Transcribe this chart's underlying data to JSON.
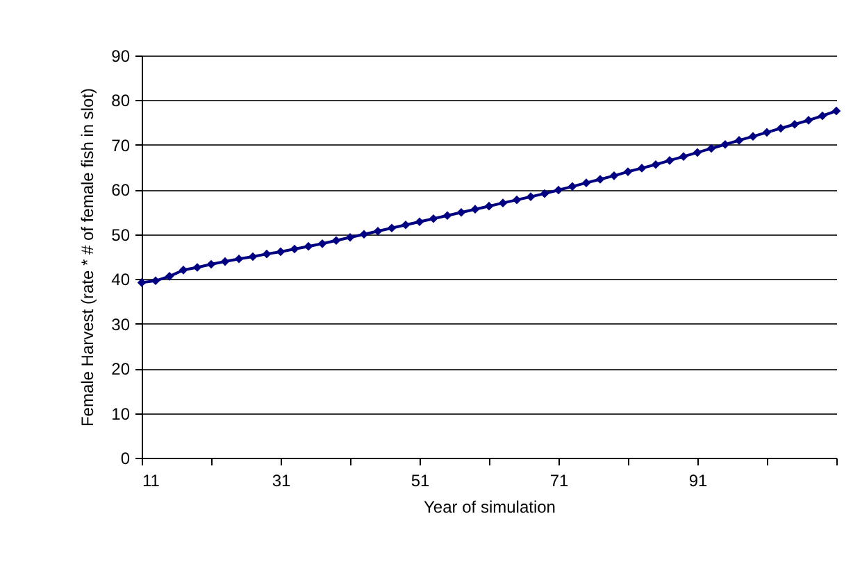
{
  "chart_data": {
    "type": "line",
    "xlabel": "Year of simulation",
    "ylabel": "Female Harvest (rate * # of female fish in slot)",
    "x": [
      11,
      13,
      15,
      17,
      19,
      21,
      23,
      25,
      27,
      29,
      31,
      33,
      35,
      37,
      39,
      41,
      43,
      45,
      47,
      49,
      51,
      53,
      55,
      57,
      59,
      61,
      63,
      65,
      67,
      69,
      71,
      73,
      75,
      77,
      79,
      81,
      83,
      85,
      87,
      89,
      91,
      93,
      95,
      97,
      99,
      101,
      103,
      105,
      107,
      109,
      111
    ],
    "series": [
      {
        "color": "#000080",
        "values": [
          39.2,
          39.6,
          40.6,
          42.0,
          42.6,
          43.3,
          43.9,
          44.5,
          45.0,
          45.6,
          46.1,
          46.7,
          47.3,
          47.9,
          48.6,
          49.3,
          50.0,
          50.7,
          51.4,
          52.1,
          52.8,
          53.5,
          54.2,
          54.9,
          55.6,
          56.3,
          57.0,
          57.7,
          58.4,
          59.1,
          59.9,
          60.7,
          61.5,
          62.3,
          63.1,
          64.0,
          64.8,
          65.6,
          66.5,
          67.4,
          68.3,
          69.2,
          70.1,
          71.0,
          71.9,
          72.8,
          73.7,
          74.6,
          75.5,
          76.5,
          77.6
        ]
      }
    ],
    "xlim": [
      11,
      111
    ],
    "xticks": [
      11,
      {
        "value": 21,
        "label": null
      },
      31,
      {
        "value": 41,
        "label": null
      },
      51,
      {
        "value": 61,
        "label": null
      },
      71,
      {
        "value": 81,
        "label": null
      },
      91,
      {
        "value": 101,
        "label": null
      },
      {
        "value": 111,
        "label": null
      }
    ],
    "ylim": [
      0,
      90
    ],
    "yticks": [
      0,
      10,
      20,
      30,
      40,
      50,
      60,
      70,
      80,
      90
    ],
    "grid": "y",
    "marker": "diamond",
    "line_style": "solid"
  }
}
